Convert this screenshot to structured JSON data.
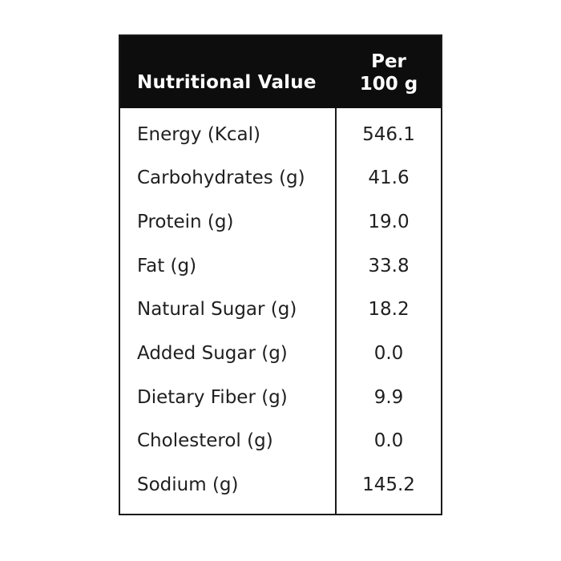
{
  "header": {
    "title": "Nutritional Value",
    "per_line1": "Per",
    "per_line2": "100 g"
  },
  "table": {
    "rows": [
      {
        "label": "Energy (Kcal)",
        "value": "546.1"
      },
      {
        "label": "Carbohydrates (g)",
        "value": "41.6"
      },
      {
        "label": "Protein (g)",
        "value": "19.0"
      },
      {
        "label": "Fat (g)",
        "value": "33.8"
      },
      {
        "label": "Natural Sugar (g)",
        "value": "18.2"
      },
      {
        "label": "Added Sugar (g)",
        "value": "0.0"
      },
      {
        "label": "Dietary Fiber (g)",
        "value": "9.9"
      },
      {
        "label": "Cholesterol (g)",
        "value": "0.0"
      },
      {
        "label": "Sodium (g)",
        "value": "145.2"
      }
    ]
  },
  "colors": {
    "header_bg": "#0d0d0d",
    "header_text": "#ffffff",
    "body_text": "#1f1f1f",
    "border": "#1a1a1a",
    "background": "#ffffff"
  }
}
